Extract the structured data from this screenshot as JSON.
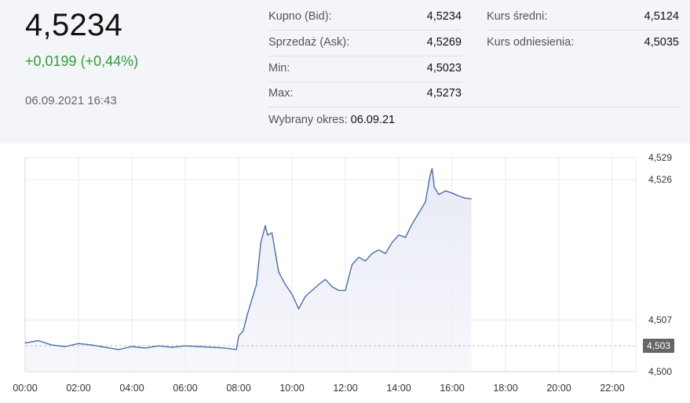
{
  "quote": {
    "price": "4,5234",
    "change": "+0,0199 (+0,44%)",
    "timestamp": "06.09.2021 16:43"
  },
  "stats_left": [
    {
      "label": "Kupno (Bid):",
      "value": "4,5234"
    },
    {
      "label": "Sprzedaż (Ask):",
      "value": "4,5269"
    },
    {
      "label": "Min:",
      "value": "4,5023"
    },
    {
      "label": "Max:",
      "value": "4,5273"
    }
  ],
  "stats_right": [
    {
      "label": "Kurs średni:",
      "value": "4,5124"
    },
    {
      "label": "Kurs odniesienia:",
      "value": "4,5035"
    }
  ],
  "period": {
    "label": "Wybrany okres:",
    "value": "06.09.21"
  },
  "colors": {
    "accent_up": "#2e9e3e",
    "line": "#4a6ea8",
    "fill": "#e6e8f4",
    "badge": "#666666"
  },
  "chart_data": {
    "type": "area",
    "title": "",
    "xlabel": "",
    "ylabel": "",
    "x_range": [
      "00:00",
      "24:00"
    ],
    "ylim": [
      4.5,
      4.529
    ],
    "x_ticks": [
      "00:00",
      "02:00",
      "04:00",
      "06:00",
      "08:00",
      "10:00",
      "12:00",
      "14:00",
      "16:00",
      "18:00",
      "20:00",
      "22:00"
    ],
    "y_ticks": [
      "4,529",
      "4,526",
      "4,507",
      "4,500"
    ],
    "y_tick_values": [
      4.529,
      4.526,
      4.507,
      4.5
    ],
    "reference_line": 4.5035,
    "last_value_label": "4,503",
    "grid": true,
    "series": [
      {
        "x": [
          "00:00",
          "00:30",
          "01:00",
          "01:30",
          "02:00",
          "02:30",
          "03:00",
          "03:30",
          "04:00",
          "04:30",
          "05:00",
          "05:30",
          "06:00",
          "06:30",
          "07:00",
          "07:30",
          "07:55",
          "08:00",
          "08:10",
          "08:20",
          "08:30",
          "08:40",
          "08:50",
          "09:00",
          "09:05",
          "09:15",
          "09:30",
          "09:45",
          "10:00",
          "10:15",
          "10:30",
          "10:45",
          "11:00",
          "11:15",
          "11:30",
          "11:45",
          "12:00",
          "12:15",
          "12:30",
          "12:45",
          "13:00",
          "13:15",
          "13:30",
          "13:45",
          "14:00",
          "14:15",
          "14:30",
          "14:45",
          "15:00",
          "15:10",
          "15:15",
          "15:20",
          "15:30",
          "15:45",
          "16:00",
          "16:15",
          "16:30",
          "16:43"
        ],
        "y": [
          4.5039,
          4.5042,
          4.5036,
          4.5034,
          4.5038,
          4.5036,
          4.5033,
          4.503,
          4.5034,
          4.5032,
          4.5035,
          4.5033,
          4.5035,
          4.5034,
          4.5033,
          4.5032,
          4.503,
          4.5048,
          4.5055,
          4.5078,
          4.5098,
          4.5118,
          4.5175,
          4.5198,
          4.5185,
          4.5188,
          4.5135,
          4.5118,
          4.5105,
          4.5085,
          4.5102,
          4.511,
          4.5118,
          4.5125,
          4.5115,
          4.511,
          4.511,
          4.5145,
          4.5155,
          4.515,
          4.516,
          4.5165,
          4.516,
          4.5175,
          4.5185,
          4.5182,
          4.52,
          4.5215,
          4.523,
          4.5265,
          4.5275,
          4.525,
          4.524,
          4.5245,
          4.5242,
          4.5238,
          4.5235,
          4.5234
        ]
      }
    ]
  }
}
